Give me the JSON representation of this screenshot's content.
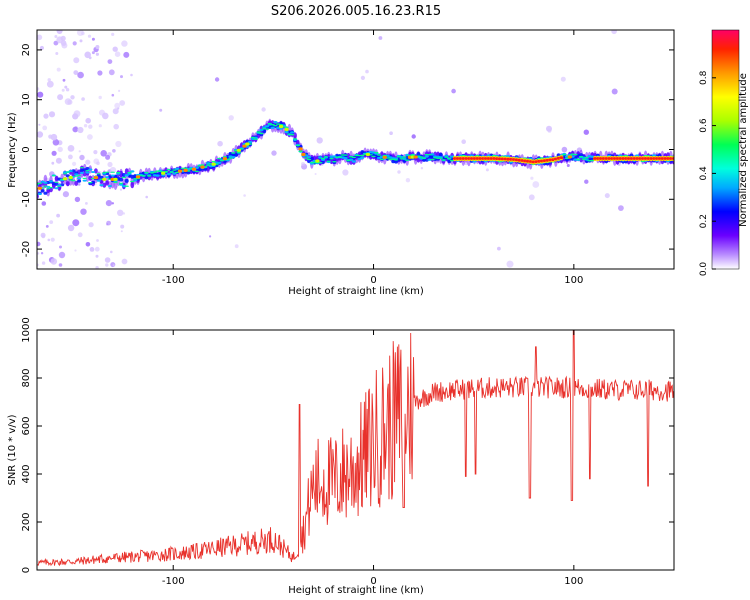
{
  "title": "S206.2026.005.16.23.R15",
  "colors": {
    "snr_line": "#e8312b",
    "axis": "#000000"
  },
  "chart_data": [
    {
      "type": "heatmap",
      "title": "S206.2026.005.16.23.R15",
      "xlabel": "Height of straight line (km)",
      "ylabel": "Frequency (Hz)",
      "xlim": [
        -168,
        150
      ],
      "ylim": [
        -24,
        24
      ],
      "xticks": [
        -100,
        0,
        100
      ],
      "yticks": [
        -20,
        -10,
        0,
        10,
        20
      ],
      "colorbar": {
        "label": "Normalized spectral amplitude",
        "range": [
          0,
          1
        ],
        "ticks": [
          0.0,
          0.2,
          0.4,
          0.6,
          0.8
        ]
      },
      "ridge": {
        "x": [
          -168,
          -155,
          -145,
          -135,
          -125,
          -110,
          -100,
          -90,
          -80,
          -70,
          -60,
          -55,
          -50,
          -45,
          -40,
          -35,
          -30,
          -25,
          -20,
          -15,
          -10,
          -5,
          0,
          5,
          10,
          20,
          30,
          40,
          50,
          60,
          70,
          80,
          90,
          95,
          100,
          110,
          120,
          130,
          150
        ],
        "y": [
          -8,
          -6,
          -5,
          -6,
          -6,
          -5,
          -4.5,
          -4,
          -3,
          -1,
          2,
          4,
          5,
          4.5,
          3,
          -1,
          -2.5,
          -2,
          -2,
          -1.5,
          -2,
          -1,
          -1,
          -1.5,
          -2,
          -1.5,
          -1.5,
          -1.8,
          -1.8,
          -1.8,
          -2,
          -2.5,
          -2,
          -1.5,
          -1.5,
          -1.8,
          -1.8,
          -1.8,
          -1.8
        ]
      },
      "high_amplitude_x_ranges": [
        [
          40,
          95
        ],
        [
          110,
          150
        ]
      ]
    },
    {
      "type": "line",
      "xlabel": "Height of straight line (km)",
      "ylabel": "SNR (10 * v/v)",
      "xlim": [
        -168,
        150
      ],
      "ylim": [
        0,
        1000
      ],
      "xticks": [
        -100,
        0,
        100
      ],
      "yticks": [
        0,
        200,
        400,
        600,
        800,
        1000
      ],
      "series": [
        {
          "name": "SNR",
          "x": [
            -168,
            -150,
            -130,
            -110,
            -90,
            -75,
            -60,
            -50,
            -45,
            -40,
            -35,
            -30,
            -25,
            -20,
            -15,
            -10,
            -5,
            0,
            10,
            20,
            30,
            40,
            60,
            80,
            100,
            120,
            140,
            150
          ],
          "y": [
            30,
            35,
            50,
            60,
            75,
            95,
            115,
            130,
            90,
            50,
            160,
            350,
            380,
            360,
            400,
            420,
            470,
            540,
            620,
            700,
            740,
            750,
            760,
            760,
            760,
            750,
            750,
            745
          ]
        }
      ],
      "dips": [
        {
          "x": 15,
          "y": 260
        },
        {
          "x": 46,
          "y": 390
        },
        {
          "x": 51,
          "y": 400
        },
        {
          "x": 78,
          "y": 300
        },
        {
          "x": 99,
          "y": 290
        },
        {
          "x": 108,
          "y": 380
        },
        {
          "x": 137,
          "y": 350
        }
      ],
      "spikes": [
        {
          "x": -37,
          "y": 690
        },
        {
          "x": 81,
          "y": 930
        },
        {
          "x": 100,
          "y": 1050
        }
      ]
    }
  ]
}
